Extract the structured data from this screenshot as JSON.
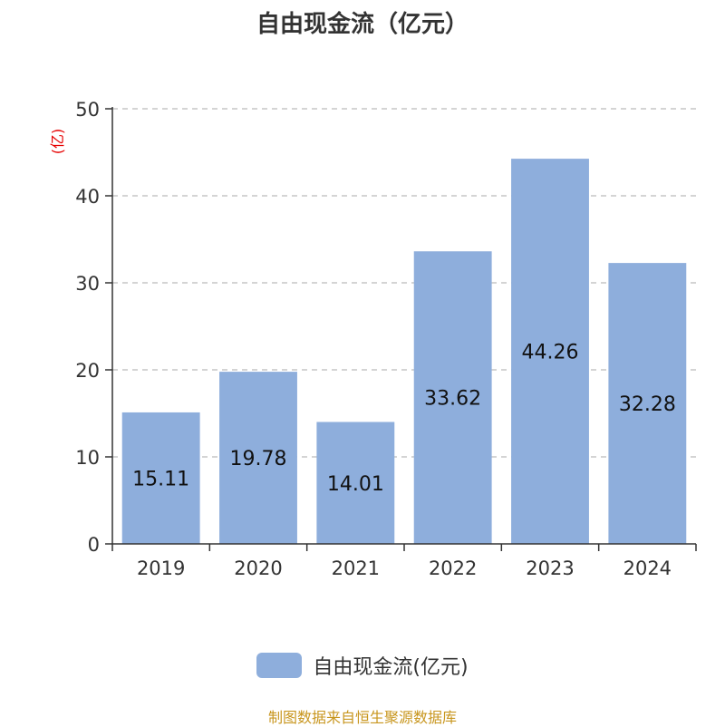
{
  "chart_data": {
    "type": "bar",
    "title": "自由现金流（亿元）",
    "unit_label": "(亿)",
    "categories": [
      "2019",
      "2020",
      "2021",
      "2022",
      "2023",
      "2024"
    ],
    "series": [
      {
        "name": "自由现金流(亿元)",
        "values": [
          15.11,
          19.78,
          14.01,
          33.62,
          44.26,
          32.28
        ],
        "color": "#8eaedc"
      }
    ],
    "data_labels": [
      "15.11",
      "19.78",
      "14.01",
      "33.62",
      "44.26",
      "32.28"
    ],
    "ylim": [
      0,
      50
    ],
    "yticks": [
      0,
      10,
      20,
      30,
      40,
      50
    ],
    "grid": true,
    "legend_position": "bottom"
  },
  "source_note": "制图数据来自恒生聚源数据库"
}
